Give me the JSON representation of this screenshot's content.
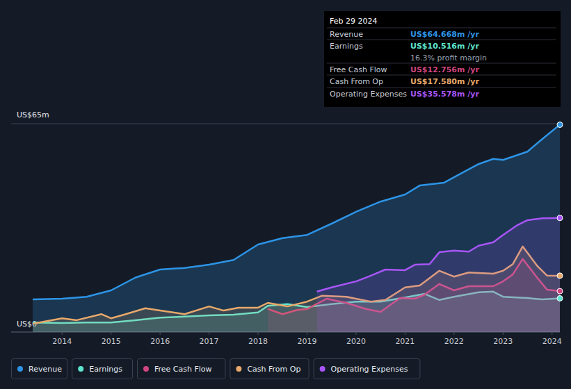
{
  "chart_data": {
    "type": "area",
    "xlim": [
      2012.96,
      2024.16
    ],
    "xticks": [
      2014,
      2015,
      2016,
      2017,
      2018,
      2019,
      2020,
      2021,
      2022,
      2023,
      2024
    ],
    "ylim": [
      0,
      65
    ],
    "yticks": [
      {
        "value": 0,
        "label": "US$0"
      },
      {
        "value": 65,
        "label": "US$65m"
      }
    ],
    "grid": true,
    "legend": "bottom",
    "series": [
      {
        "name": "Revenue",
        "color": "#2d94e6",
        "x": [
          2013.4,
          2014,
          2014.5,
          2015,
          2015.5,
          2016,
          2016.5,
          2017,
          2017.5,
          2018,
          2018.5,
          2019,
          2019.5,
          2020,
          2020.5,
          2021,
          2021.3,
          2021.8,
          2022,
          2022.5,
          2022.8,
          2023,
          2023.5,
          2023.8,
          2024.16
        ],
        "values": [
          10.2,
          10.4,
          11,
          13,
          17,
          19.5,
          20,
          21,
          22.5,
          27.3,
          29.3,
          30.3,
          33.8,
          37.5,
          40.7,
          42.9,
          45.7,
          46.6,
          48.3,
          52.4,
          54,
          53.7,
          56.3,
          60.2,
          64.668
        ]
      },
      {
        "name": "Earnings",
        "color": "#5ee6d0",
        "x": [
          2013.4,
          2014,
          2014.5,
          2015,
          2015.5,
          2016,
          2016.5,
          2017,
          2017.5,
          2018,
          2018.2,
          2018.6,
          2019,
          2019.5,
          2020,
          2020.5,
          2021,
          2021.4,
          2021.7,
          2022,
          2022.5,
          2022.8,
          2023,
          2023.5,
          2023.8,
          2024.16
        ],
        "values": [
          3,
          2.8,
          3,
          3,
          3.7,
          4.5,
          4.8,
          5.2,
          5.4,
          6.1,
          8.2,
          8.7,
          7.8,
          8.7,
          9.5,
          9.5,
          10.8,
          11.9,
          10,
          11,
          12.4,
          12.6,
          11,
          10.6,
          10.2,
          10.516
        ]
      },
      {
        "name": "Free Cash Flow",
        "color": "#d0457f",
        "x": [
          2018.2,
          2018.5,
          2018.8,
          2019,
          2019.4,
          2019.8,
          2020.2,
          2020.5,
          2020.9,
          2021.2,
          2021.4,
          2021.7,
          2022,
          2022.3,
          2022.8,
          2023,
          2023.2,
          2023.4,
          2023.7,
          2023.9,
          2024.16
        ],
        "values": [
          7.2,
          5.6,
          6.9,
          7.2,
          10.4,
          9.1,
          7.2,
          6.3,
          10.6,
          10.4,
          11.7,
          15,
          13,
          14.3,
          14.3,
          15.8,
          18,
          22.8,
          16.9,
          13.2,
          12.756
        ]
      },
      {
        "name": "Cash From Op",
        "color": "#e8a96a",
        "x": [
          2013.4,
          2014,
          2014.3,
          2014.8,
          2015,
          2015.3,
          2015.7,
          2016,
          2016.5,
          2017,
          2017.3,
          2017.6,
          2018,
          2018.2,
          2018.6,
          2019,
          2019.3,
          2019.8,
          2020.3,
          2020.6,
          2021,
          2021.3,
          2021.7,
          2022,
          2022.3,
          2022.8,
          2023,
          2023.2,
          2023.4,
          2023.7,
          2023.9,
          2024.16
        ],
        "values": [
          2.6,
          4.3,
          3.7,
          5.6,
          4.3,
          5.6,
          7.4,
          6.7,
          5.6,
          8,
          6.7,
          7.6,
          7.6,
          9.1,
          8,
          9.5,
          11.3,
          11,
          9.5,
          10,
          13.9,
          14.5,
          19.1,
          17.3,
          18.6,
          18.2,
          19.1,
          21.2,
          26.7,
          20.6,
          17.6,
          17.58
        ]
      },
      {
        "name": "Operating Expenses",
        "color": "#a855f7",
        "x": [
          2019.2,
          2019.5,
          2020,
          2020.3,
          2020.6,
          2021,
          2021.2,
          2021.5,
          2021.7,
          2022,
          2022.3,
          2022.5,
          2022.8,
          2023,
          2023.3,
          2023.5,
          2023.8,
          2024.16
        ],
        "values": [
          12.6,
          13.9,
          15.8,
          17.6,
          19.5,
          19.3,
          21,
          21.2,
          24.9,
          25.4,
          25.1,
          26.9,
          28,
          30.3,
          33.4,
          34.9,
          35.5,
          35.578
        ]
      }
    ],
    "tooltip": {
      "date": "Feb 29 2024",
      "rows": [
        {
          "label": "Revenue",
          "value": "US$64.668m /yr",
          "color": "#2d94e6"
        },
        {
          "label": "Earnings",
          "value": "US$10.516m /yr",
          "color": "#5ee6d0"
        },
        {
          "label": "",
          "value": "16.3% profit margin",
          "color": "#9aa4b2"
        },
        {
          "label": "Free Cash Flow",
          "value": "US$12.756m /yr",
          "color": "#d0457f"
        },
        {
          "label": "Cash From Op",
          "value": "US$17.580m /yr",
          "color": "#e8a96a"
        },
        {
          "label": "Operating Expenses",
          "value": "US$35.578m /yr",
          "color": "#a855f7"
        }
      ]
    }
  }
}
